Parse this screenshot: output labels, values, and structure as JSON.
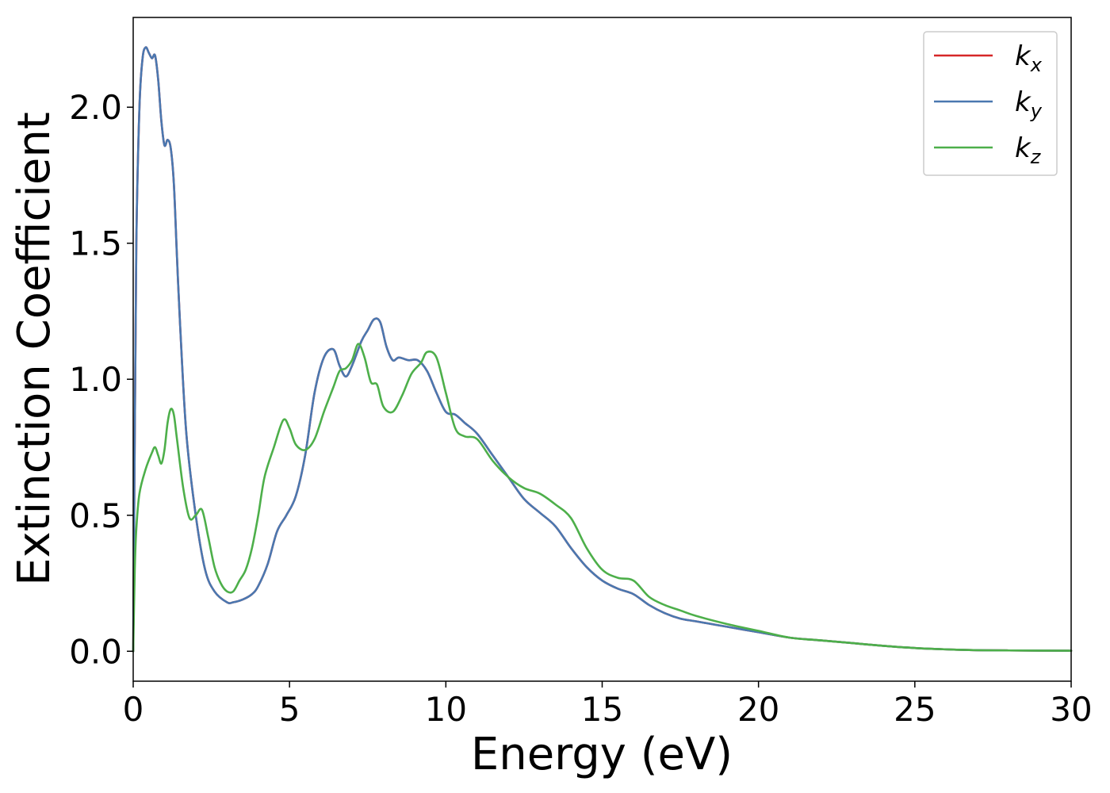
{
  "chart_data": {
    "type": "line",
    "title": "",
    "xlabel": "Energy (eV)",
    "ylabel": "Extinction Coefficient",
    "xlim": [
      0,
      30
    ],
    "ylim": [
      -0.11,
      2.33
    ],
    "xticks": [
      0,
      5,
      10,
      15,
      20,
      25,
      30
    ],
    "yticks": [
      0.0,
      0.5,
      1.0,
      1.5,
      2.0
    ],
    "xtick_labels": [
      "0",
      "5",
      "10",
      "15",
      "20",
      "25",
      "30"
    ],
    "ytick_labels": [
      "0.0",
      "0.5",
      "1.0",
      "1.5",
      "2.0"
    ],
    "grid": false,
    "legend_position": "top-right",
    "colors": {
      "kx": "#d62728",
      "ky": "#4a78b0",
      "kz": "#4daf4a"
    },
    "series": [
      {
        "name": "k_x",
        "label_base": "k",
        "label_sub": "x",
        "color": "#d62728",
        "x": [
          0,
          0.05,
          0.1,
          0.2,
          0.3,
          0.4,
          0.5,
          0.6,
          0.7,
          0.8,
          0.9,
          1.0,
          1.1,
          1.2,
          1.3,
          1.4,
          1.5,
          1.7,
          2.0,
          2.3,
          2.6,
          3.0,
          3.2,
          3.5,
          3.8,
          4.0,
          4.3,
          4.6,
          4.9,
          5.2,
          5.5,
          5.8,
          6.1,
          6.4,
          6.6,
          6.8,
          7.0,
          7.3,
          7.5,
          7.7,
          7.9,
          8.1,
          8.3,
          8.5,
          8.8,
          9.1,
          9.4,
          9.7,
          10.0,
          10.3,
          10.6,
          11.0,
          11.5,
          12.0,
          12.5,
          13.0,
          13.5,
          14.0,
          14.5,
          15.0,
          15.5,
          16.0,
          16.5,
          17.0,
          17.5,
          18.0,
          19.0,
          20.0,
          21.0,
          22.0,
          23.0,
          24.0,
          25.0,
          26.0,
          27.0,
          28.0,
          30.0
        ],
        "y": [
          0.0,
          0.8,
          1.5,
          2.0,
          2.18,
          2.22,
          2.2,
          2.18,
          2.19,
          2.1,
          1.95,
          1.86,
          1.88,
          1.85,
          1.72,
          1.45,
          1.2,
          0.8,
          0.5,
          0.3,
          0.22,
          0.18,
          0.18,
          0.19,
          0.21,
          0.24,
          0.32,
          0.44,
          0.5,
          0.57,
          0.72,
          0.95,
          1.08,
          1.11,
          1.05,
          1.01,
          1.05,
          1.14,
          1.18,
          1.22,
          1.21,
          1.12,
          1.07,
          1.08,
          1.07,
          1.07,
          1.03,
          0.95,
          0.88,
          0.87,
          0.84,
          0.8,
          0.72,
          0.64,
          0.56,
          0.51,
          0.46,
          0.38,
          0.31,
          0.26,
          0.23,
          0.21,
          0.17,
          0.14,
          0.12,
          0.11,
          0.09,
          0.07,
          0.05,
          0.04,
          0.03,
          0.02,
          0.012,
          0.007,
          0.004,
          0.003,
          0.002
        ]
      },
      {
        "name": "k_y",
        "label_base": "k",
        "label_sub": "y",
        "color": "#4a78b0",
        "x": [
          0,
          0.05,
          0.1,
          0.2,
          0.3,
          0.4,
          0.5,
          0.6,
          0.7,
          0.8,
          0.9,
          1.0,
          1.1,
          1.2,
          1.3,
          1.4,
          1.5,
          1.7,
          2.0,
          2.3,
          2.6,
          3.0,
          3.2,
          3.5,
          3.8,
          4.0,
          4.3,
          4.6,
          4.9,
          5.2,
          5.5,
          5.8,
          6.1,
          6.4,
          6.6,
          6.8,
          7.0,
          7.3,
          7.5,
          7.7,
          7.9,
          8.1,
          8.3,
          8.5,
          8.8,
          9.1,
          9.4,
          9.7,
          10.0,
          10.3,
          10.6,
          11.0,
          11.5,
          12.0,
          12.5,
          13.0,
          13.5,
          14.0,
          14.5,
          15.0,
          15.5,
          16.0,
          16.5,
          17.0,
          17.5,
          18.0,
          19.0,
          20.0,
          21.0,
          22.0,
          23.0,
          24.0,
          25.0,
          26.0,
          27.0,
          28.0,
          30.0
        ],
        "y": [
          0.0,
          0.8,
          1.5,
          2.0,
          2.18,
          2.22,
          2.2,
          2.18,
          2.19,
          2.1,
          1.95,
          1.86,
          1.88,
          1.85,
          1.72,
          1.45,
          1.2,
          0.8,
          0.5,
          0.3,
          0.22,
          0.18,
          0.18,
          0.19,
          0.21,
          0.24,
          0.32,
          0.44,
          0.5,
          0.57,
          0.72,
          0.95,
          1.08,
          1.11,
          1.05,
          1.01,
          1.05,
          1.14,
          1.18,
          1.22,
          1.21,
          1.12,
          1.07,
          1.08,
          1.07,
          1.07,
          1.03,
          0.95,
          0.88,
          0.87,
          0.84,
          0.8,
          0.72,
          0.64,
          0.56,
          0.51,
          0.46,
          0.38,
          0.31,
          0.26,
          0.23,
          0.21,
          0.17,
          0.14,
          0.12,
          0.11,
          0.09,
          0.07,
          0.05,
          0.04,
          0.03,
          0.02,
          0.012,
          0.007,
          0.004,
          0.003,
          0.002
        ]
      },
      {
        "name": "k_z",
        "label_base": "k",
        "label_sub": "z",
        "color": "#4daf4a",
        "x": [
          0,
          0.05,
          0.1,
          0.2,
          0.4,
          0.6,
          0.7,
          0.8,
          0.9,
          1.0,
          1.1,
          1.2,
          1.3,
          1.4,
          1.6,
          1.8,
          2.0,
          2.2,
          2.4,
          2.6,
          2.8,
          3.0,
          3.2,
          3.4,
          3.6,
          3.8,
          4.0,
          4.2,
          4.5,
          4.8,
          5.0,
          5.2,
          5.5,
          5.8,
          6.1,
          6.4,
          6.6,
          6.8,
          7.0,
          7.2,
          7.4,
          7.6,
          7.8,
          8.0,
          8.3,
          8.6,
          8.9,
          9.2,
          9.4,
          9.7,
          10.0,
          10.3,
          10.6,
          11.0,
          11.5,
          12.0,
          12.5,
          13.0,
          13.5,
          14.0,
          14.5,
          15.0,
          15.5,
          16.0,
          16.5,
          17.0,
          17.5,
          18.0,
          19.0,
          20.0,
          21.0,
          22.0,
          23.0,
          24.0,
          25.0,
          26.0,
          27.0,
          28.0,
          30.0
        ],
        "y": [
          0.0,
          0.3,
          0.45,
          0.58,
          0.67,
          0.73,
          0.75,
          0.72,
          0.69,
          0.74,
          0.84,
          0.89,
          0.87,
          0.78,
          0.6,
          0.49,
          0.5,
          0.52,
          0.42,
          0.31,
          0.25,
          0.22,
          0.22,
          0.26,
          0.3,
          0.38,
          0.5,
          0.64,
          0.75,
          0.85,
          0.82,
          0.76,
          0.74,
          0.78,
          0.88,
          0.97,
          1.03,
          1.04,
          1.07,
          1.13,
          1.08,
          0.99,
          0.98,
          0.9,
          0.88,
          0.94,
          1.02,
          1.06,
          1.1,
          1.08,
          0.95,
          0.82,
          0.79,
          0.78,
          0.7,
          0.64,
          0.6,
          0.58,
          0.54,
          0.49,
          0.38,
          0.3,
          0.27,
          0.26,
          0.2,
          0.17,
          0.15,
          0.13,
          0.1,
          0.075,
          0.05,
          0.04,
          0.03,
          0.02,
          0.012,
          0.007,
          0.004,
          0.003,
          0.002
        ]
      }
    ]
  }
}
